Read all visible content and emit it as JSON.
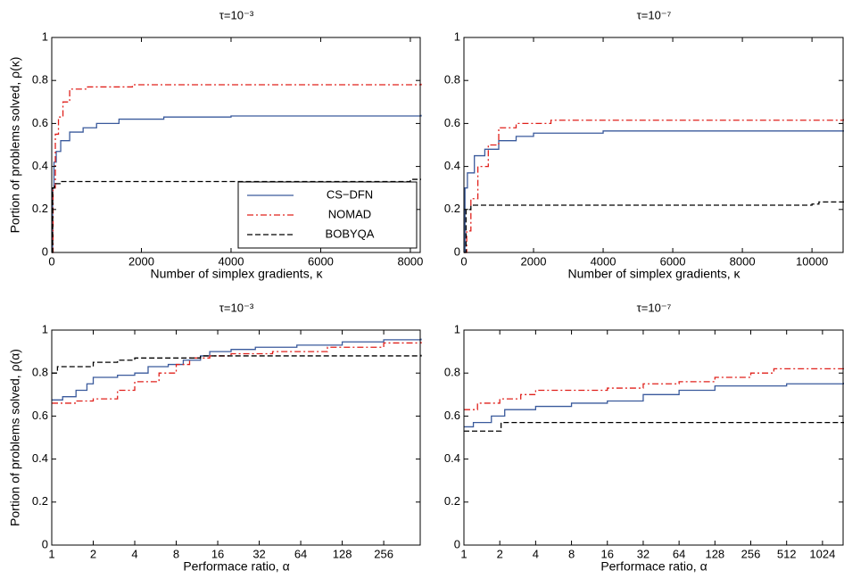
{
  "chart_data": [
    {
      "type": "line",
      "title": "τ=10⁻³",
      "xlabel": "Number of simplex gradients, κ",
      "ylabel": "Portion of problems solved, ρ(κ)",
      "xlim": [
        0,
        8240
      ],
      "xticks": [
        0,
        2000,
        4000,
        6000,
        8000
      ],
      "ylim": [
        0,
        1
      ],
      "yticks": [
        0,
        0.2,
        0.4,
        0.6,
        0.8,
        1
      ],
      "xscale": "linear",
      "legend": "lower right",
      "series": [
        {
          "name": "CS−DFN",
          "color": "#3a5a9c",
          "dash": "solid",
          "x": [
            0,
            20,
            50,
            100,
            200,
            400,
            700,
            1000,
            1500,
            2500,
            4000,
            8240
          ],
          "values": [
            0,
            0.3,
            0.42,
            0.47,
            0.52,
            0.56,
            0.58,
            0.6,
            0.62,
            0.63,
            0.635,
            0.64
          ]
        },
        {
          "name": "NOMAD",
          "color": "#e0201b",
          "dash": "dashdot",
          "x": [
            0,
            30,
            80,
            150,
            250,
            400,
            800,
            1800,
            8240
          ],
          "values": [
            0,
            0.3,
            0.55,
            0.63,
            0.7,
            0.76,
            0.77,
            0.78,
            0.785
          ]
        },
        {
          "name": "BOBYQA",
          "color": "#000000",
          "dash": "dashed",
          "x": [
            0,
            20,
            60,
            200,
            8000,
            8240
          ],
          "values": [
            0,
            0.3,
            0.32,
            0.33,
            0.34,
            0.34
          ]
        }
      ]
    },
    {
      "type": "line",
      "title": "τ=10⁻⁷",
      "xlabel": "Number of simplex gradients, κ",
      "xlim": [
        0,
        10920
      ],
      "xticks": [
        0,
        2000,
        4000,
        6000,
        8000,
        10000
      ],
      "ylim": [
        0,
        1
      ],
      "yticks": [
        0,
        0.2,
        0.4,
        0.6,
        0.8,
        1
      ],
      "xscale": "linear",
      "series": [
        {
          "color": "#3a5a9c",
          "dash": "solid",
          "x": [
            0,
            30,
            100,
            300,
            600,
            1000,
            1500,
            2000,
            4000,
            10920
          ],
          "values": [
            0,
            0.3,
            0.37,
            0.45,
            0.48,
            0.52,
            0.54,
            0.555,
            0.565,
            0.565
          ]
        },
        {
          "color": "#e0201b",
          "dash": "dashdot",
          "x": [
            0,
            80,
            200,
            400,
            700,
            1000,
            1500,
            2500,
            10920
          ],
          "values": [
            0,
            0.1,
            0.25,
            0.4,
            0.5,
            0.58,
            0.6,
            0.615,
            0.62
          ]
        },
        {
          "color": "#000000",
          "dash": "dashed",
          "x": [
            0,
            60,
            200,
            10000,
            10200,
            10920
          ],
          "values": [
            0,
            0.2,
            0.22,
            0.225,
            0.235,
            0.235
          ]
        }
      ]
    },
    {
      "type": "line",
      "title": "τ=10⁻³",
      "xlabel": "Performace ratio, α",
      "ylabel": "Portion of problems solved, ρ(α)",
      "xlim": [
        1,
        478
      ],
      "xticks": [
        1,
        2,
        4,
        8,
        16,
        32,
        64,
        128,
        256
      ],
      "ylim": [
        0,
        1
      ],
      "yticks": [
        0,
        0.2,
        0.4,
        0.6,
        0.8,
        1
      ],
      "xscale": "log2",
      "series": [
        {
          "color": "#3a5a9c",
          "dash": "solid",
          "x": [
            1,
            1.2,
            1.5,
            1.8,
            2,
            3,
            4,
            5,
            7,
            9,
            12,
            14,
            20,
            30,
            60,
            128,
            256,
            478
          ],
          "values": [
            0.675,
            0.69,
            0.72,
            0.75,
            0.78,
            0.79,
            0.8,
            0.83,
            0.84,
            0.86,
            0.88,
            0.9,
            0.91,
            0.92,
            0.93,
            0.945,
            0.955,
            0.96
          ]
        },
        {
          "color": "#e0201b",
          "dash": "dashdot",
          "x": [
            1,
            1.5,
            2,
            3,
            4,
            6,
            8,
            10,
            14,
            20,
            40,
            100,
            256,
            478
          ],
          "values": [
            0.66,
            0.67,
            0.68,
            0.72,
            0.76,
            0.8,
            0.84,
            0.87,
            0.88,
            0.89,
            0.9,
            0.92,
            0.94,
            0.945
          ]
        },
        {
          "color": "#000000",
          "dash": "dashed",
          "x": [
            1,
            1.1,
            2,
            3,
            4,
            10,
            12,
            478
          ],
          "values": [
            0.8,
            0.83,
            0.85,
            0.86,
            0.87,
            0.87,
            0.88,
            0.885
          ]
        }
      ]
    },
    {
      "type": "line",
      "title": "τ=10⁻⁷",
      "xlabel": "Performace ratio, α",
      "xlim": [
        1,
        1552
      ],
      "xticks": [
        1,
        2,
        4,
        8,
        16,
        32,
        64,
        128,
        256,
        512,
        1024
      ],
      "ylim": [
        0,
        1
      ],
      "yticks": [
        0,
        0.2,
        0.4,
        0.6,
        0.8,
        1
      ],
      "xscale": "log2",
      "series": [
        {
          "color": "#3a5a9c",
          "dash": "solid",
          "x": [
            1,
            1.2,
            1.7,
            2.2,
            4,
            8,
            16,
            32,
            64,
            128,
            512,
            1552
          ],
          "values": [
            0.55,
            0.57,
            0.6,
            0.63,
            0.645,
            0.66,
            0.67,
            0.7,
            0.72,
            0.74,
            0.75,
            0.755
          ]
        },
        {
          "color": "#e0201b",
          "dash": "dashdot",
          "x": [
            1,
            1.3,
            2,
            3,
            4,
            16,
            32,
            64,
            128,
            256,
            400,
            1552
          ],
          "values": [
            0.63,
            0.66,
            0.68,
            0.7,
            0.72,
            0.73,
            0.75,
            0.76,
            0.78,
            0.8,
            0.82,
            0.82
          ]
        },
        {
          "color": "#000000",
          "dash": "dashed",
          "x": [
            1,
            2,
            2.05,
            1552
          ],
          "values": [
            0.53,
            0.53,
            0.57,
            0.57
          ]
        }
      ]
    }
  ]
}
